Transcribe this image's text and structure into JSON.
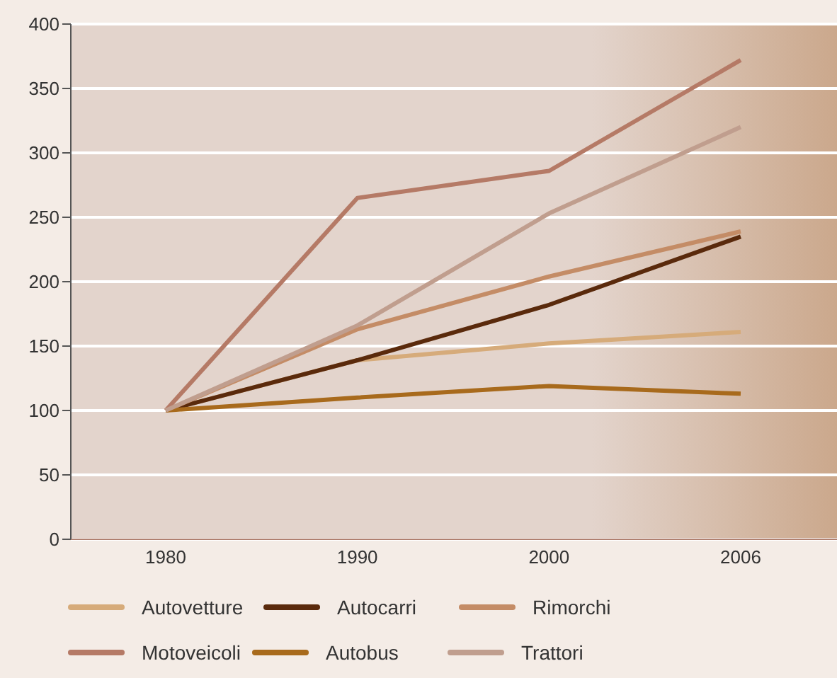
{
  "chart_data": {
    "type": "line",
    "categories": [
      "1980",
      "1990",
      "2000",
      "2006"
    ],
    "series": [
      {
        "name": "Autovetture",
        "color": "#d6ab7a",
        "values": [
          100,
          139,
          152,
          161
        ]
      },
      {
        "name": "Autocarri",
        "color": "#5a2a0c",
        "values": [
          100,
          139,
          182,
          235
        ]
      },
      {
        "name": "Rimorchi",
        "color": "#c48c66",
        "values": [
          100,
          163,
          204,
          239
        ]
      },
      {
        "name": "Motoveicoli",
        "color": "#b57a66",
        "values": [
          100,
          265,
          286,
          372
        ]
      },
      {
        "name": "Autobus",
        "color": "#a86a1c",
        "values": [
          100,
          110,
          119,
          113
        ]
      },
      {
        "name": "Trattori",
        "color": "#c09e8e",
        "values": [
          100,
          166,
          253,
          320
        ]
      }
    ],
    "ylim": [
      0,
      400
    ],
    "yticks": [
      0,
      50,
      100,
      150,
      200,
      250,
      300,
      350,
      400
    ],
    "grid": "y",
    "legend": "bottom",
    "marker": "none",
    "line_style": "solid"
  }
}
